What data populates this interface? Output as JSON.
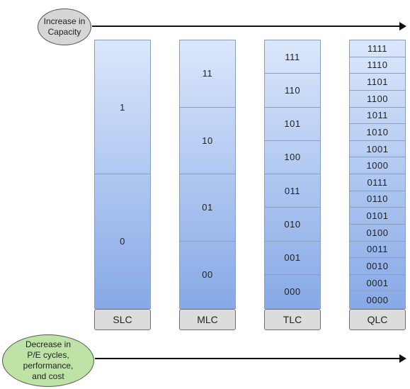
{
  "capacity_label": "Increase in\nCapacity",
  "pe_label": "Decrease in\nP/E cycles,\nperformance,\nand cost",
  "columns": [
    {
      "name": "SLC",
      "levels": [
        "1",
        "0"
      ]
    },
    {
      "name": "MLC",
      "levels": [
        "11",
        "10",
        "01",
        "00"
      ]
    },
    {
      "name": "TLC",
      "levels": [
        "111",
        "110",
        "101",
        "100",
        "011",
        "010",
        "001",
        "000"
      ]
    },
    {
      "name": "QLC",
      "levels": [
        "1111",
        "1110",
        "1101",
        "1100",
        "1011",
        "1010",
        "1001",
        "1000",
        "0111",
        "0110",
        "0101",
        "0100",
        "0011",
        "0010",
        "0001",
        "0000"
      ]
    }
  ],
  "colors": {
    "column_top": "#dbe7fb",
    "column_bottom": "#87a9e6",
    "capacity_oval": "#d6d6d6",
    "pe_oval": "#bde3a6"
  }
}
